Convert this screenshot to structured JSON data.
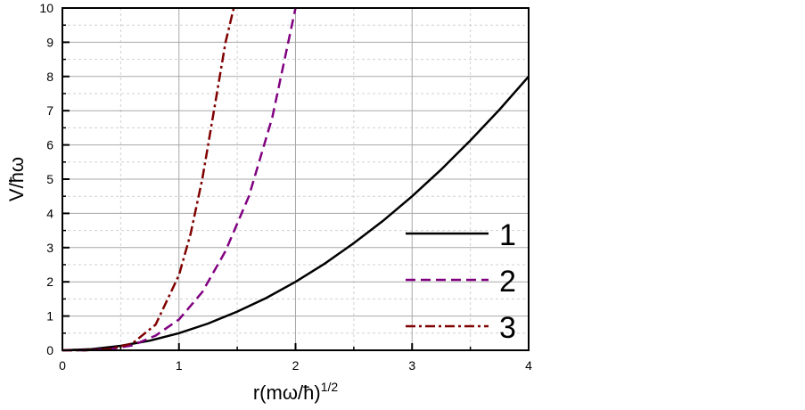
{
  "chart_data": {
    "type": "line",
    "xlabel_main": "r(mω/ħ)",
    "xlabel_sup": "1/2",
    "ylabel": "V/ħω",
    "xlim": [
      0,
      4
    ],
    "ylim": [
      0,
      10
    ],
    "x_ticks": [
      "0",
      "1",
      "2",
      "3",
      "4"
    ],
    "y_ticks": [
      "0",
      "1",
      "2",
      "3",
      "4",
      "5",
      "6",
      "7",
      "8",
      "9",
      "10"
    ],
    "grid": "on",
    "legend_position": "right",
    "series": [
      {
        "name": "1",
        "line_style": "solid",
        "color": "#000000",
        "x": [
          0,
          0.25,
          0.5,
          0.75,
          1.0,
          1.25,
          1.5,
          1.75,
          2.0,
          2.25,
          2.5,
          2.75,
          3.0,
          3.25,
          3.5,
          3.75,
          4.0
        ],
        "y": [
          0,
          0.03,
          0.13,
          0.28,
          0.5,
          0.78,
          1.13,
          1.53,
          2.0,
          2.53,
          3.13,
          3.78,
          4.5,
          5.28,
          6.13,
          7.03,
          8.0
        ]
      },
      {
        "name": "2",
        "line_style": "dashed",
        "color": "#800080",
        "x": [
          0,
          0.2,
          0.4,
          0.6,
          0.8,
          1.0,
          1.2,
          1.4,
          1.6,
          1.8,
          2.0
        ],
        "y": [
          0,
          0.0,
          0.03,
          0.14,
          0.43,
          0.9,
          1.7,
          2.9,
          4.5,
          6.8,
          10.0
        ]
      },
      {
        "name": "3",
        "line_style": "dash-dot",
        "color": "#800000",
        "x": [
          0,
          0.2,
          0.4,
          0.6,
          0.8,
          1.0,
          1.1,
          1.2,
          1.3,
          1.4,
          1.47
        ],
        "y": [
          0,
          0.0,
          0.03,
          0.2,
          0.75,
          2.2,
          3.4,
          5.0,
          7.0,
          9.0,
          10.0
        ]
      }
    ]
  }
}
